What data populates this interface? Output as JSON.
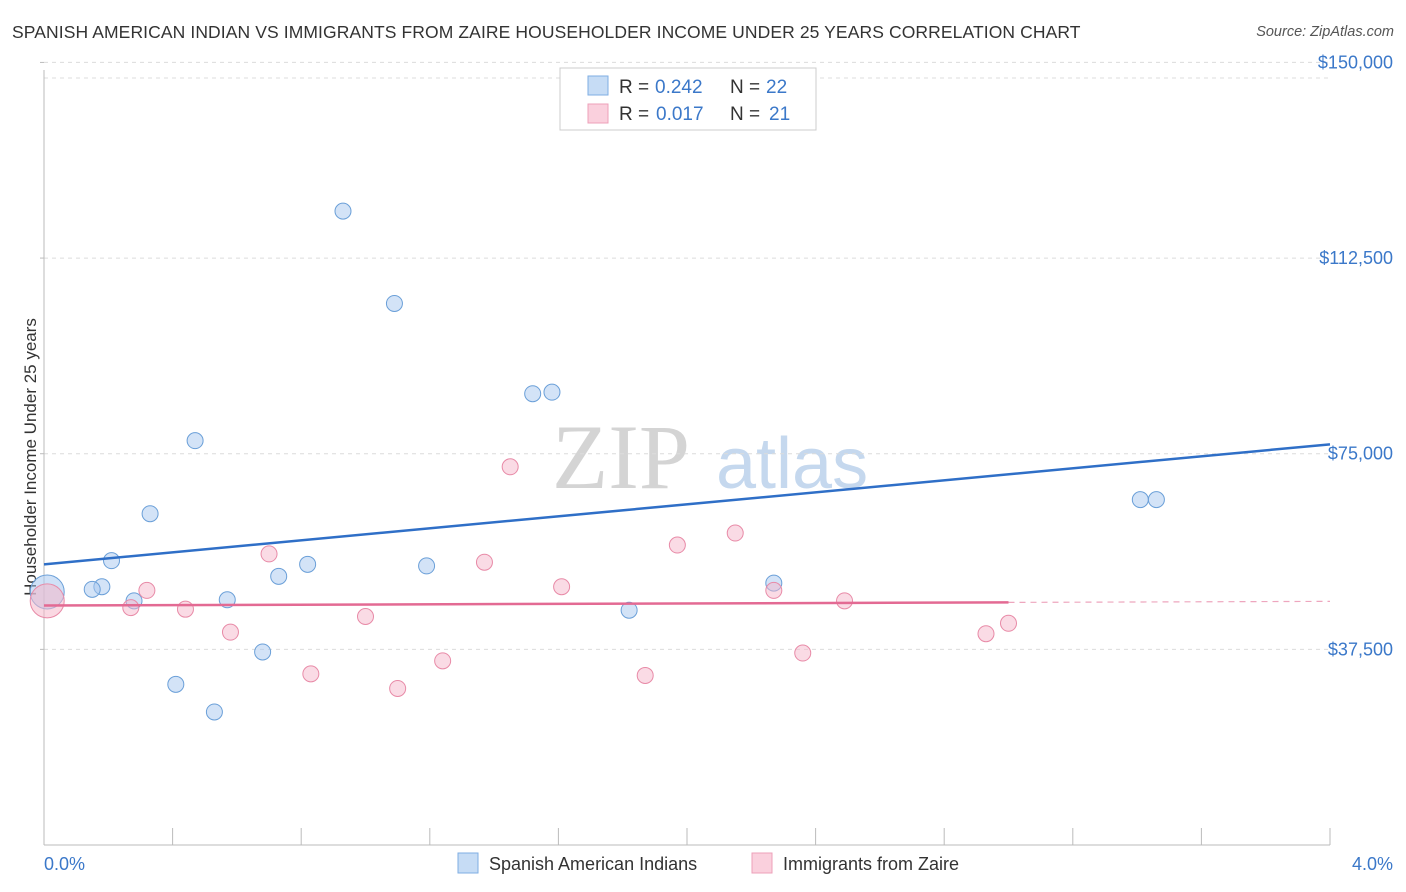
{
  "title": "SPANISH AMERICAN INDIAN VS IMMIGRANTS FROM ZAIRE HOUSEHOLDER INCOME UNDER 25 YEARS CORRELATION CHART",
  "source": "Source: ZipAtlas.com",
  "watermark": {
    "zip": "ZIP",
    "atlas": "atlas"
  },
  "legend": {
    "r_label": "R =",
    "n_label": "N =",
    "rows": [
      {
        "r": "0.242",
        "n": "22",
        "color": "#a8c8f0"
      },
      {
        "r": "0.017",
        "n": "21",
        "color": "#f5b8cb"
      }
    ]
  },
  "chart_data": {
    "type": "scatter",
    "ylabel": "Householder Income Under 25 years",
    "xlim": [
      0,
      4.0
    ],
    "ylim": [
      0,
      152000
    ],
    "x_tick_labels": {
      "left": "0.0%",
      "right": "4.0%"
    },
    "y_ticks": [
      {
        "value": 37500,
        "label": "$37,500"
      },
      {
        "value": 75000,
        "label": "$75,000"
      },
      {
        "value": 112500,
        "label": "$112,500"
      },
      {
        "value": 150000,
        "label": "$150,000"
      }
    ],
    "grid": true,
    "legend_position": "top-center",
    "series": [
      {
        "name": "Spanish American Indians",
        "color": "#a8c8f0",
        "stroke": "#6a9fd8",
        "line_color": "#2f6fc7",
        "trend": {
          "x": [
            0.0,
            4.0
          ],
          "y": [
            53800,
            76800
          ]
        },
        "points": [
          {
            "x": 0.01,
            "y": 48500,
            "big": true
          },
          {
            "x": 0.18,
            "y": 49500
          },
          {
            "x": 0.15,
            "y": 49000
          },
          {
            "x": 0.21,
            "y": 54500
          },
          {
            "x": 0.28,
            "y": 46800
          },
          {
            "x": 0.33,
            "y": 63500
          },
          {
            "x": 0.41,
            "y": 30800
          },
          {
            "x": 0.47,
            "y": 77500
          },
          {
            "x": 0.53,
            "y": 25500
          },
          {
            "x": 0.57,
            "y": 47000
          },
          {
            "x": 0.68,
            "y": 37000
          },
          {
            "x": 0.73,
            "y": 51500
          },
          {
            "x": 0.82,
            "y": 53800
          },
          {
            "x": 0.93,
            "y": 121500
          },
          {
            "x": 1.09,
            "y": 103800
          },
          {
            "x": 1.19,
            "y": 53500
          },
          {
            "x": 1.52,
            "y": 86500
          },
          {
            "x": 1.58,
            "y": 86800
          },
          {
            "x": 1.82,
            "y": 45000
          },
          {
            "x": 2.27,
            "y": 50200
          },
          {
            "x": 3.41,
            "y": 66200
          },
          {
            "x": 3.46,
            "y": 66200
          }
        ]
      },
      {
        "name": "Immigrants from Zaire",
        "color": "#f5b8cb",
        "stroke": "#e88aa7",
        "line_color": "#e36a93",
        "trend": {
          "x": [
            0.0,
            3.0
          ],
          "y": [
            45900,
            46500
          ]
        },
        "trend_dashed": {
          "x": [
            3.0,
            4.0
          ],
          "y": [
            46500,
            46700
          ]
        },
        "points": [
          {
            "x": 0.01,
            "y": 46800,
            "big": true
          },
          {
            "x": 0.27,
            "y": 45500
          },
          {
            "x": 0.32,
            "y": 48800
          },
          {
            "x": 0.44,
            "y": 45200
          },
          {
            "x": 0.58,
            "y": 40800
          },
          {
            "x": 0.7,
            "y": 55800
          },
          {
            "x": 0.83,
            "y": 32800
          },
          {
            "x": 1.0,
            "y": 43800
          },
          {
            "x": 1.1,
            "y": 30000
          },
          {
            "x": 1.24,
            "y": 35300
          },
          {
            "x": 1.37,
            "y": 54200
          },
          {
            "x": 1.45,
            "y": 72500
          },
          {
            "x": 1.61,
            "y": 49500
          },
          {
            "x": 1.87,
            "y": 32500
          },
          {
            "x": 1.97,
            "y": 57500
          },
          {
            "x": 2.15,
            "y": 59800
          },
          {
            "x": 2.27,
            "y": 48800
          },
          {
            "x": 2.36,
            "y": 36800
          },
          {
            "x": 2.49,
            "y": 46800
          },
          {
            "x": 2.93,
            "y": 40500
          },
          {
            "x": 3.0,
            "y": 42500
          }
        ]
      }
    ]
  }
}
